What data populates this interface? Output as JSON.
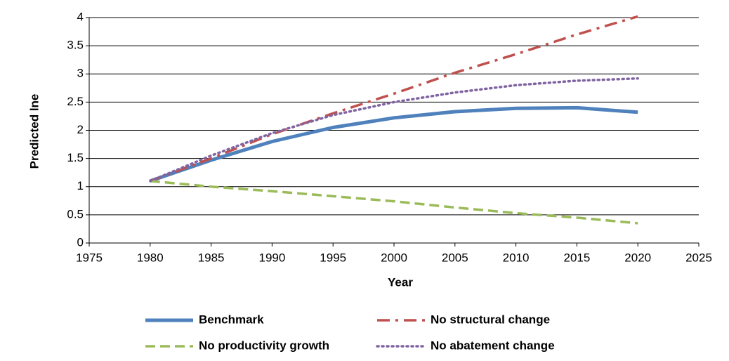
{
  "chart_data": {
    "type": "line",
    "x_label": "Year",
    "y_label": "Predicted lne",
    "x": [
      1980,
      1985,
      1990,
      1995,
      2000,
      2005,
      2010,
      2015,
      2020
    ],
    "series": [
      {
        "name": "Benchmark",
        "color": "#4f81bd",
        "line_style": "solid",
        "values": [
          1.1,
          1.47,
          1.8,
          2.05,
          2.22,
          2.33,
          2.39,
          2.4,
          2.32
        ]
      },
      {
        "name": "No structural change",
        "color": "#c0504d",
        "line_style": "dashdot",
        "values": [
          1.1,
          1.5,
          1.93,
          2.3,
          2.65,
          3.02,
          3.35,
          3.7,
          4.02
        ]
      },
      {
        "name": "No productivity growth",
        "color": "#9bbb59",
        "line_style": "dashed",
        "values": [
          1.1,
          1.0,
          0.92,
          0.83,
          0.74,
          0.63,
          0.53,
          0.45,
          0.35
        ]
      },
      {
        "name": "No abatement change",
        "color": "#8064a2",
        "line_style": "dotted",
        "values": [
          1.1,
          1.55,
          1.95,
          2.27,
          2.5,
          2.67,
          2.8,
          2.88,
          2.92
        ]
      }
    ],
    "xlim": [
      1975,
      2025
    ],
    "xticks": [
      1975,
      1980,
      1985,
      1990,
      1995,
      2000,
      2005,
      2010,
      2015,
      2020,
      2025
    ],
    "ylim": [
      0,
      4
    ],
    "yticks": [
      0,
      0.5,
      1,
      1.5,
      2,
      2.5,
      3,
      3.5,
      4
    ],
    "grid": true
  }
}
